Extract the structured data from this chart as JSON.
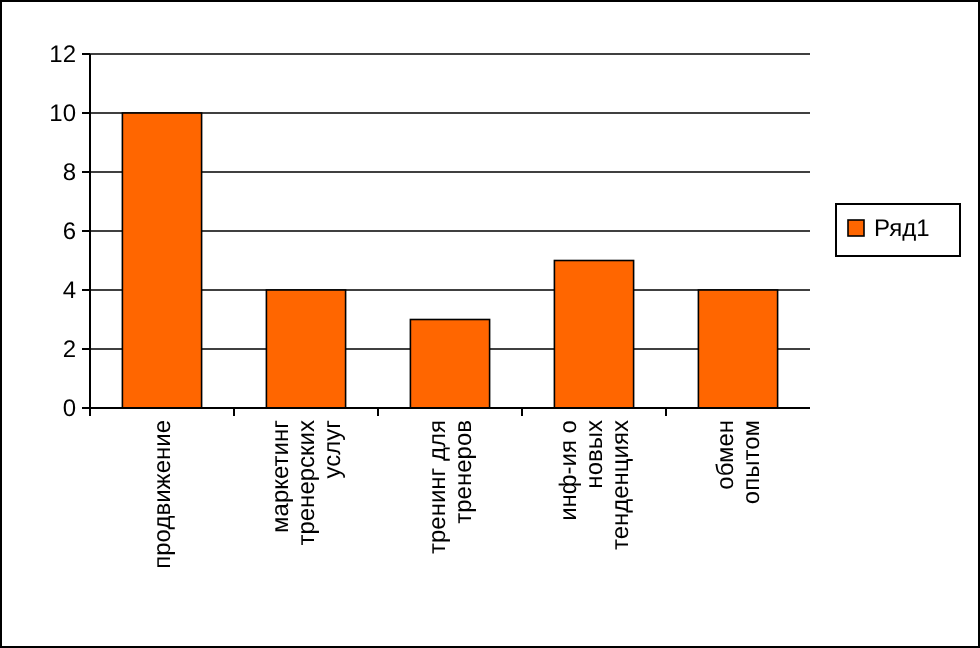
{
  "chart_data": {
    "type": "bar",
    "categories": [
      "продвижение",
      "маркетинг тренерских услуг",
      "тренинг для тренеров",
      "инф-ия о новых тенденциях",
      "обмен опытом"
    ],
    "series": [
      {
        "name": "Ряд1",
        "color": "#ff6600",
        "values": [
          10,
          4,
          3,
          5,
          4
        ]
      }
    ],
    "ylim": [
      0,
      12
    ],
    "yticks": [
      0,
      2,
      4,
      6,
      8,
      10,
      12
    ],
    "grid": "y",
    "legend": "right"
  }
}
